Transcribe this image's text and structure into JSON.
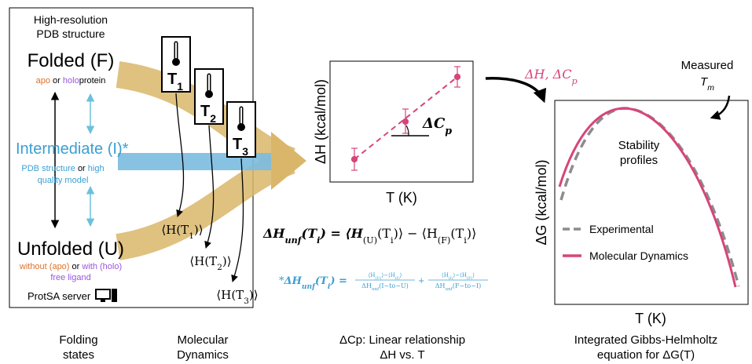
{
  "folding_states": {
    "pdb_note": [
      "High-resolution",
      "PDB structure"
    ],
    "folded": [
      "Folded (F)"
    ],
    "folded_note": [
      [
        {
          "text": "apo",
          "color": "#e0702a"
        },
        {
          "text": " or "
        },
        {
          "text": "holo",
          "color": "#9a55e0"
        },
        {
          "text": "protein"
        }
      ]
    ],
    "intermediate": [
      "Intermediate (I)*"
    ],
    "intermediate_note": [
      [
        {
          "text": "PDB structure "
        },
        {
          "text": "or",
          "color": "#000000"
        },
        {
          "text": " high"
        }
      ],
      "quality model"
    ],
    "unfolded": [
      "Unfolded (U)"
    ],
    "unfolded_note": [
      [
        {
          "text": "without (apo)",
          "color": "#e0702a"
        },
        {
          "text": " or "
        },
        {
          "text": "with (holo)",
          "color": "#9a55e0"
        }
      ],
      [
        {
          "text": "free ligand",
          "color": "#9a55e0"
        }
      ]
    ],
    "server": [
      "ProtSA server"
    ],
    "caption": [
      "Folding",
      "states"
    ]
  },
  "molecular_dynamics": {
    "temperatures": [
      [
        [
          {
            "text": "T"
          },
          {
            "text": "1",
            "sub": true
          }
        ]
      ],
      [
        [
          {
            "text": "T"
          },
          {
            "text": "2",
            "sub": true
          }
        ]
      ],
      [
        [
          {
            "text": "T"
          },
          {
            "text": "3",
            "sub": true
          }
        ]
      ]
    ],
    "averages": [
      [
        [
          {
            "text": "⟨H(T"
          },
          {
            "text": "1",
            "sub": true
          },
          {
            "text": ")⟩"
          }
        ]
      ],
      [
        [
          {
            "text": "⟨H(T"
          },
          {
            "text": "2",
            "sub": true
          },
          {
            "text": ")⟩"
          }
        ]
      ],
      [
        [
          {
            "text": "⟨H(T"
          },
          {
            "text": "3",
            "sub": true
          },
          {
            "text": ")⟩"
          }
        ]
      ]
    ],
    "caption": [
      "Molecular",
      "Dynamics"
    ]
  },
  "equations": {
    "enthalpy": [
      [
        {
          "text": "ΔH",
          "bold": true,
          "italic": true
        },
        {
          "text": "unf",
          "sub": true,
          "bold": true,
          "italic": true
        },
        {
          "text": "(T",
          "bold": true,
          "italic": true
        },
        {
          "text": "i",
          "sub": true,
          "bold": true,
          "italic": true
        },
        {
          "text": ") = ⟨H",
          "bold": true,
          "italic": true
        },
        {
          "text": "(U)",
          "sub": true
        },
        {
          "text": "(T"
        },
        {
          "text": "i",
          "sub": true
        },
        {
          "text": ")⟩ − ⟨H"
        },
        {
          "text": "(F)",
          "sub": true
        },
        {
          "text": "(T"
        },
        {
          "text": "i",
          "sub": true
        },
        {
          "text": ")⟩"
        }
      ]
    ],
    "intermediate_lhs": [
      [
        {
          "text": "*"
        },
        {
          "text": "ΔH",
          "bold": true,
          "italic": true
        },
        {
          "text": "unf",
          "sub": true,
          "bold": true,
          "italic": true
        },
        {
          "text": "(T",
          "bold": true,
          "italic": true
        },
        {
          "text": "i",
          "sub": true,
          "bold": true,
          "italic": true
        },
        {
          "text": ") =",
          "bold": true,
          "italic": true
        }
      ]
    ],
    "fraction_1": {
      "num": [
        [
          {
            "text": "⟨H"
          },
          {
            "text": "(U)",
            "sub": true
          },
          {
            "text": "⟩−⟨H"
          },
          {
            "text": "(I)",
            "sub": true
          },
          {
            "text": "⟩"
          }
        ]
      ],
      "den": [
        [
          {
            "text": "ΔH"
          },
          {
            "text": "unf",
            "sub": true
          },
          {
            "text": "(I−to−U)"
          }
        ]
      ]
    },
    "plus": [
      "+"
    ],
    "fraction_2": {
      "num": [
        [
          {
            "text": "⟨H"
          },
          {
            "text": "(I)",
            "sub": true
          },
          {
            "text": "⟩−⟨H"
          },
          {
            "text": "(F)",
            "sub": true
          },
          {
            "text": "⟩"
          }
        ]
      ],
      "den": [
        [
          {
            "text": "ΔH"
          },
          {
            "text": "unf",
            "sub": true
          },
          {
            "text": "(F−to−I)"
          }
        ]
      ]
    }
  },
  "heat_capacity_plot": {
    "y_label": [
      "ΔH (kcal/mol)"
    ],
    "x_label": [
      "T (K)"
    ],
    "slope_label": [
      [
        {
          "text": "ΔC",
          "bold": true,
          "italic": true
        },
        {
          "text": "p",
          "sub": true,
          "bold": true,
          "italic": true
        }
      ]
    ],
    "caption": [
      "ΔCp: Linear relationship",
      "ΔH vs. T"
    ]
  },
  "transfer_label": [
    [
      {
        "text": "ΔH, ΔC",
        "italic": true
      },
      {
        "text": "p",
        "sub": true,
        "italic": true
      }
    ]
  ],
  "stability_plot": {
    "measured": [
      "Measured",
      [
        {
          "text": "T",
          "italic": true
        },
        {
          "text": "m",
          "sub": true,
          "italic": true
        }
      ]
    ],
    "y_label": [
      "ΔG (kcal/mol)"
    ],
    "x_label": [
      "T (K)"
    ],
    "title": [
      "Stability",
      "profiles"
    ],
    "legend": [
      {
        "name": "Experimental",
        "color": "#8c8c8c"
      },
      {
        "name": "Molecular Dynamics",
        "color": "#d6457a"
      }
    ],
    "caption": [
      "Integrated Gibbs-Helmholtz",
      "equation for ΔG(T)"
    ]
  }
}
